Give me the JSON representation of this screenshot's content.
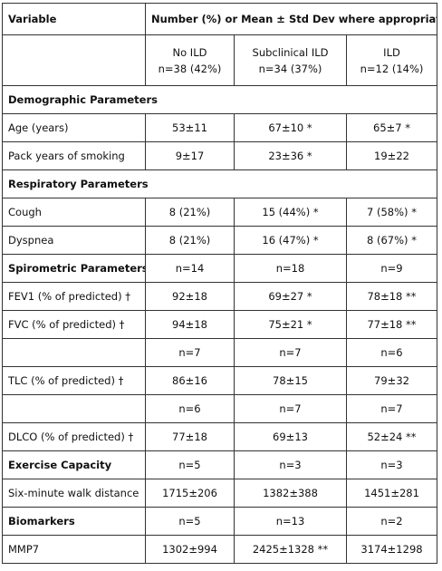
{
  "header": {
    "variable": "Variable",
    "span_title": "Number (%) or Mean ± Std Dev where appropriate",
    "groups": [
      {
        "name": "No ILD",
        "n": "n=38 (42%)"
      },
      {
        "name": "Subclinical ILD",
        "n": "n=34 (37%)"
      },
      {
        "name": "ILD",
        "n": "n=12 (14%)"
      }
    ]
  },
  "rows": [
    {
      "label": "Demographic Parameters",
      "section": true,
      "values": []
    },
    {
      "label": "Age (years)",
      "values": [
        "53±11",
        "67±10 *",
        "65±7 *"
      ]
    },
    {
      "label": "Pack years of smoking",
      "values": [
        "9±17",
        "23±36 *",
        "19±22"
      ]
    },
    {
      "label": "Respiratory Parameters",
      "section": true,
      "values": []
    },
    {
      "label": "Cough",
      "values": [
        "8 (21%)",
        "15 (44%) *",
        "7 (58%) *"
      ]
    },
    {
      "label": "Dyspnea",
      "values": [
        "8 (21%)",
        "16 (47%) *",
        "8 (67%) *"
      ]
    },
    {
      "label": "Spirometric Parameters",
      "section": true,
      "values": [
        "n=14",
        "n=18",
        "n=9"
      ]
    },
    {
      "label": "FEV1 (% of predicted) †",
      "values": [
        "92±18",
        "69±27 *",
        "78±18 **"
      ]
    },
    {
      "label": "FVC (% of predicted) †",
      "values": [
        "94±18",
        "75±21 *",
        "77±18 **"
      ]
    },
    {
      "label": "",
      "values": [
        "n=7",
        "n=7",
        "n=6"
      ]
    },
    {
      "label": "TLC (% of predicted) †",
      "values": [
        "86±16",
        "78±15",
        "79±32"
      ]
    },
    {
      "label": "",
      "values": [
        "n=6",
        "n=7",
        "n=7"
      ]
    },
    {
      "label": "DLCO (% of predicted) †",
      "values": [
        "77±18",
        "69±13",
        "52±24 **"
      ]
    },
    {
      "label": "Exercise Capacity",
      "section": true,
      "values": [
        "n=5",
        "n=3",
        "n=3"
      ]
    },
    {
      "label": "Six-minute walk distance",
      "values": [
        "1715±206",
        "1382±388",
        "1451±281"
      ]
    },
    {
      "label": "Biomarkers",
      "section": true,
      "values": [
        "n=5",
        "n=13",
        "n=2"
      ]
    },
    {
      "label": "MMP7",
      "values": [
        "1302±994",
        "2425±1328 **",
        "3174±1298"
      ]
    }
  ]
}
